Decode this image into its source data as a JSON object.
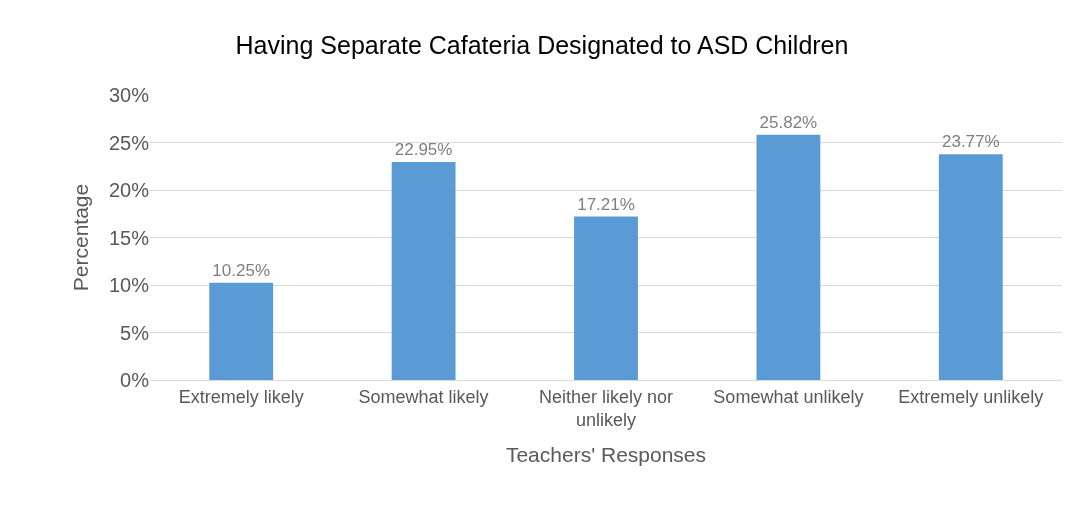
{
  "chart_data": {
    "type": "bar",
    "title": "Having Separate Cafateria Designated to ASD Children",
    "xlabel": "Teachers' Responses",
    "ylabel": "Percentage",
    "categories": [
      "Extremely likely",
      "Somewhat likely",
      "Neither likely nor unlikely",
      "Somewhat unlikely",
      "Extremely unlikely"
    ],
    "values": [
      10.25,
      22.95,
      17.21,
      25.82,
      23.77
    ],
    "value_labels": [
      "10.25%",
      "22.95%",
      "17.21%",
      "25.82%",
      "23.77%"
    ],
    "color": "#5b9bd5",
    "ylim": [
      0,
      30
    ],
    "yticks": [
      {
        "value": 0,
        "label": "0%"
      },
      {
        "value": 5,
        "label": "5%"
      },
      {
        "value": 10,
        "label": "10%"
      },
      {
        "value": 15,
        "label": "15%"
      },
      {
        "value": 20,
        "label": "20%"
      },
      {
        "value": 25,
        "label": "25%"
      },
      {
        "value": 30,
        "label": "30%"
      }
    ],
    "grid": "y"
  }
}
